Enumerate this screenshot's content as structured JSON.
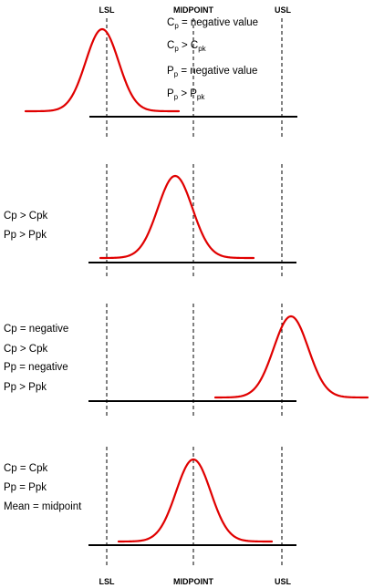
{
  "axis_labels": {
    "lsl": "LSL",
    "midpoint": "MIDPOINT",
    "usl": "USL"
  },
  "colors": {
    "curve": "#e00000",
    "line": "#000000"
  },
  "panels": [
    {
      "notes": [
        {
          "main": "C",
          "sub": "p",
          "rest": " = negative value"
        },
        {
          "main": "C",
          "sub": "p",
          "rest": " > C",
          "sub2": "pk"
        },
        {
          "main": "P",
          "sub": "p",
          "rest": " = negative value"
        },
        {
          "main": "P",
          "sub": "p",
          "rest": " > P",
          "sub2": "pk"
        }
      ]
    },
    {
      "notes": [
        "Cp > Cpk",
        "Pp > Ppk"
      ]
    },
    {
      "notes": [
        "Cp = negative",
        "Cp > Cpk",
        "Pp = negative",
        "Pp > Ppk"
      ]
    },
    {
      "notes": [
        "Cp = Cpk",
        "Pp = Ppk",
        "Mean = midpoint"
      ]
    }
  ]
}
